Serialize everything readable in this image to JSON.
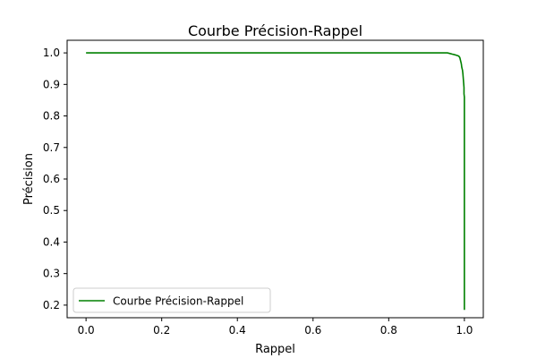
{
  "chart_data": {
    "type": "line",
    "title": "Courbe Précision-Rappel",
    "xlabel": "Rappel",
    "ylabel": "Précision",
    "xlim": [
      -0.05,
      1.05
    ],
    "ylim": [
      0.16,
      1.04
    ],
    "xticks": [
      0.0,
      0.2,
      0.4,
      0.6,
      0.8,
      1.0
    ],
    "xtick_labels": [
      "0.0",
      "0.2",
      "0.4",
      "0.6",
      "0.8",
      "1.0"
    ],
    "yticks": [
      0.2,
      0.3,
      0.4,
      0.5,
      0.6,
      0.7,
      0.8,
      0.9,
      1.0
    ],
    "ytick_labels": [
      "0.2",
      "0.3",
      "0.4",
      "0.5",
      "0.6",
      "0.7",
      "0.8",
      "0.9",
      "1.0"
    ],
    "grid": false,
    "legend_position": "lower-left",
    "series": [
      {
        "name": "Courbe Précision-Rappel",
        "color": "#008000",
        "x": [
          0.0,
          0.955,
          0.962,
          0.968,
          0.975,
          0.98,
          0.985,
          0.988,
          0.99,
          0.992,
          0.993,
          0.995,
          0.996,
          0.997,
          0.998,
          0.999,
          0.999,
          1.0,
          1.0
        ],
        "y": [
          1.0,
          1.0,
          0.998,
          0.996,
          0.994,
          0.992,
          0.99,
          0.985,
          0.975,
          0.965,
          0.955,
          0.945,
          0.935,
          0.92,
          0.905,
          0.89,
          0.87,
          0.86,
          0.185
        ]
      }
    ]
  }
}
